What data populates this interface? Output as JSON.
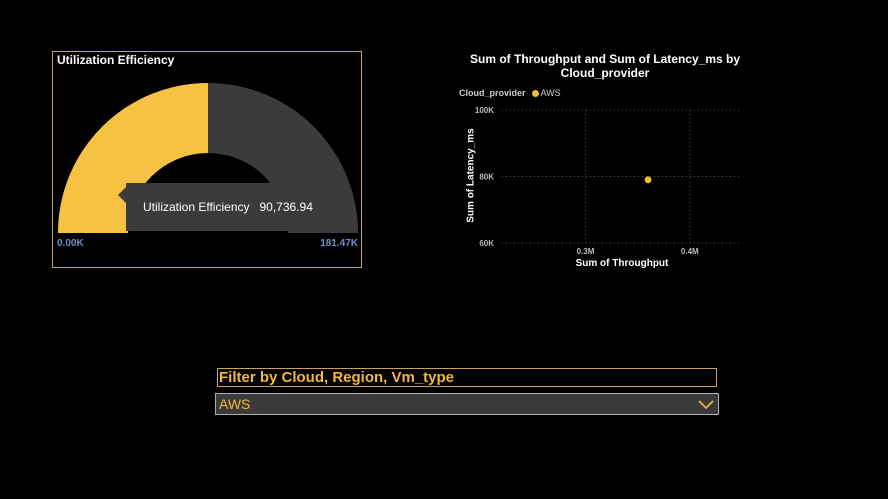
{
  "gauge": {
    "title": "Utilization Efficiency",
    "min_label": "0.00K",
    "max_label": "181.47K",
    "value": 90736.94,
    "min": 0,
    "max": 181473.88,
    "tooltip_label": "Utilization Efficiency",
    "tooltip_value": "90,736.94",
    "fill_color": "#f5c242",
    "track_color": "#3d3b39"
  },
  "scatter": {
    "title": "Sum of Throughput and Sum of Latency_ms by Cloud_provider",
    "legend_title": "Cloud_provider",
    "legend_item": "AWS",
    "xlabel": "Sum of Throughput",
    "ylabel": "Sum of Latency_ms",
    "x_ticks": [
      "0.3M",
      "0.4M"
    ],
    "y_ticks": [
      "100K",
      "80K",
      "60K"
    ]
  },
  "chart_data": {
    "type": "scatter",
    "title": "Sum of Throughput and Sum of Latency_ms by Cloud_provider",
    "xlabel": "Sum of Throughput",
    "ylabel": "Sum of Latency_ms",
    "xlim": [
      0.22,
      0.45
    ],
    "ylim": [
      60,
      100
    ],
    "x_ticks": [
      0.3,
      0.4
    ],
    "y_ticks": [
      60,
      80,
      100
    ],
    "legend_title": "Cloud_provider",
    "series": [
      {
        "name": "AWS",
        "color": "#f2b83a",
        "points": [
          {
            "x": 0.36,
            "y": 79
          }
        ]
      }
    ]
  },
  "filter": {
    "header": "Filter by Cloud, Region, Vm_type",
    "selected": "AWS"
  }
}
